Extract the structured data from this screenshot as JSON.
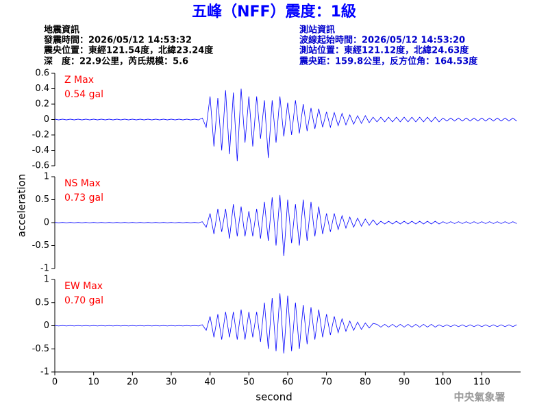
{
  "header": {
    "title": "五峰（NFF）震度：1級",
    "left": [
      "地震資訊",
      "發震時間：2026/05/12 14:53:32",
      "震央位置：東經121.54度，北緯23.24度",
      "深　度：22.9公里，芮氏規模：5.6"
    ],
    "right": [
      "測站資訊",
      "波線起始時間：2026/05/12 14:53:20",
      "測站位置：東經121.12度，北緯24.63度",
      "震央距：159.8公里，反方位角：164.53度"
    ]
  },
  "footer": "中央氣象署",
  "y_label": "acceleration",
  "chart_data": [
    {
      "type": "line",
      "annotations": [
        "Z Max",
        "0.54 gal"
      ],
      "color": "#0000ff",
      "annotation_color": "#ff0000",
      "ylim": [
        -0.6,
        0.6
      ],
      "yticks": [
        -0.6,
        -0.4,
        -0.2,
        0,
        0.2,
        0.4,
        0.6
      ],
      "xlim": [
        0,
        120
      ],
      "x": [
        0,
        1,
        2,
        3,
        4,
        5,
        6,
        7,
        8,
        9,
        10,
        11,
        12,
        13,
        14,
        15,
        16,
        17,
        18,
        19,
        20,
        21,
        22,
        23,
        24,
        25,
        26,
        27,
        28,
        29,
        30,
        31,
        32,
        33,
        34,
        35,
        36,
        37,
        38,
        39,
        40,
        41,
        42,
        43,
        44,
        45,
        46,
        47,
        48,
        49,
        50,
        51,
        52,
        53,
        54,
        55,
        56,
        57,
        58,
        59,
        60,
        61,
        62,
        63,
        64,
        65,
        66,
        67,
        68,
        69,
        70,
        71,
        72,
        73,
        74,
        75,
        76,
        77,
        78,
        79,
        80,
        81,
        82,
        83,
        84,
        85,
        86,
        87,
        88,
        89,
        90,
        91,
        92,
        93,
        94,
        95,
        96,
        97,
        98,
        99,
        100,
        101,
        102,
        103,
        104,
        105,
        106,
        107,
        108,
        109,
        110,
        111,
        112,
        113,
        114,
        115,
        116,
        117,
        118,
        119
      ],
      "values": [
        0.005,
        -0.005,
        0.005,
        -0.005,
        0.005,
        -0.005,
        0.005,
        -0.005,
        0.005,
        -0.005,
        0.005,
        -0.005,
        0.005,
        -0.005,
        0.005,
        -0.005,
        0.005,
        -0.005,
        0.005,
        -0.005,
        0.005,
        -0.005,
        0.005,
        -0.005,
        0.005,
        -0.005,
        0.005,
        -0.005,
        0.005,
        -0.005,
        0.005,
        -0.005,
        0.005,
        -0.005,
        0.005,
        -0.005,
        0.005,
        -0.005,
        0.02,
        -0.1,
        0.3,
        -0.35,
        0.28,
        -0.4,
        0.38,
        -0.45,
        0.35,
        -0.54,
        0.4,
        -0.3,
        0.3,
        -0.35,
        0.3,
        -0.25,
        0.25,
        -0.5,
        0.25,
        -0.3,
        0.3,
        -0.22,
        0.22,
        -0.2,
        0.25,
        -0.18,
        0.2,
        -0.15,
        0.15,
        -0.12,
        0.14,
        -0.1,
        0.1,
        -0.1,
        0.09,
        -0.08,
        0.08,
        -0.07,
        0.06,
        -0.06,
        0.05,
        -0.05,
        0.05,
        -0.04,
        0.03,
        -0.03,
        0.03,
        -0.03,
        0.03,
        -0.03,
        0.03,
        -0.03,
        0.03,
        -0.03,
        0.03,
        -0.03,
        0.03,
        -0.03,
        0.03,
        -0.03,
        0.03,
        -0.03,
        0.02,
        -0.02,
        0.02,
        -0.02,
        0.02,
        -0.02,
        0.02,
        -0.02,
        0.02,
        -0.02,
        0.02,
        -0.02,
        0.02,
        -0.02,
        0.02,
        -0.02,
        0.02,
        -0.02,
        0.02,
        -0.02
      ]
    },
    {
      "type": "line",
      "annotations": [
        "NS Max",
        "0.73 gal"
      ],
      "color": "#0000ff",
      "annotation_color": "#ff0000",
      "ylim": [
        -1,
        1
      ],
      "yticks": [
        -1,
        -0.5,
        0,
        0.5,
        1
      ],
      "xlim": [
        0,
        120
      ],
      "x": [
        0,
        1,
        2,
        3,
        4,
        5,
        6,
        7,
        8,
        9,
        10,
        11,
        12,
        13,
        14,
        15,
        16,
        17,
        18,
        19,
        20,
        21,
        22,
        23,
        24,
        25,
        26,
        27,
        28,
        29,
        30,
        31,
        32,
        33,
        34,
        35,
        36,
        37,
        38,
        39,
        40,
        41,
        42,
        43,
        44,
        45,
        46,
        47,
        48,
        49,
        50,
        51,
        52,
        53,
        54,
        55,
        56,
        57,
        58,
        59,
        60,
        61,
        62,
        63,
        64,
        65,
        66,
        67,
        68,
        69,
        70,
        71,
        72,
        73,
        74,
        75,
        76,
        77,
        78,
        79,
        80,
        81,
        82,
        83,
        84,
        85,
        86,
        87,
        88,
        89,
        90,
        91,
        92,
        93,
        94,
        95,
        96,
        97,
        98,
        99,
        100,
        101,
        102,
        103,
        104,
        105,
        106,
        107,
        108,
        109,
        110,
        111,
        112,
        113,
        114,
        115,
        116,
        117,
        118,
        119
      ],
      "values": [
        0.005,
        -0.005,
        0.005,
        -0.005,
        0.005,
        -0.005,
        0.005,
        -0.005,
        0.005,
        -0.005,
        0.005,
        -0.005,
        0.005,
        -0.005,
        0.005,
        -0.005,
        0.005,
        -0.005,
        0.005,
        -0.005,
        0.005,
        -0.005,
        0.005,
        -0.005,
        0.005,
        -0.005,
        0.005,
        -0.005,
        0.005,
        -0.005,
        0.005,
        -0.005,
        0.005,
        -0.005,
        0.005,
        -0.005,
        0.005,
        -0.005,
        0.02,
        -0.1,
        0.2,
        -0.25,
        0.3,
        -0.2,
        0.3,
        -0.35,
        0.4,
        -0.3,
        0.35,
        -0.3,
        0.25,
        -0.3,
        0.3,
        -0.35,
        0.45,
        -0.4,
        0.55,
        -0.5,
        0.6,
        -0.73,
        0.5,
        -0.45,
        0.4,
        -0.5,
        0.5,
        -0.4,
        0.45,
        -0.3,
        0.35,
        -0.25,
        0.2,
        -0.2,
        0.2,
        -0.15,
        0.15,
        -0.12,
        0.12,
        -0.1,
        0.1,
        -0.08,
        0.08,
        -0.06,
        0.06,
        -0.05,
        0.03,
        -0.03,
        0.03,
        -0.03,
        0.03,
        -0.03,
        0.03,
        -0.03,
        0.03,
        -0.03,
        0.03,
        -0.03,
        0.03,
        -0.03,
        0.03,
        -0.03,
        0.02,
        -0.02,
        0.02,
        -0.02,
        0.02,
        -0.02,
        0.02,
        -0.02,
        0.02,
        -0.02,
        0.02,
        -0.02,
        0.02,
        -0.02,
        0.02,
        -0.02,
        0.02,
        -0.02,
        0.02,
        -0.02
      ]
    },
    {
      "type": "line",
      "annotations": [
        "EW Max",
        "0.70 gal"
      ],
      "color": "#0000ff",
      "annotation_color": "#ff0000",
      "ylim": [
        -1,
        1
      ],
      "yticks": [
        -1,
        -0.5,
        0,
        0.5,
        1
      ],
      "xlim": [
        0,
        120
      ],
      "xticks": [
        0,
        10,
        20,
        30,
        40,
        50,
        60,
        70,
        80,
        90,
        100,
        110
      ],
      "x_label": "second",
      "x": [
        0,
        1,
        2,
        3,
        4,
        5,
        6,
        7,
        8,
        9,
        10,
        11,
        12,
        13,
        14,
        15,
        16,
        17,
        18,
        19,
        20,
        21,
        22,
        23,
        24,
        25,
        26,
        27,
        28,
        29,
        30,
        31,
        32,
        33,
        34,
        35,
        36,
        37,
        38,
        39,
        40,
        41,
        42,
        43,
        44,
        45,
        46,
        47,
        48,
        49,
        50,
        51,
        52,
        53,
        54,
        55,
        56,
        57,
        58,
        59,
        60,
        61,
        62,
        63,
        64,
        65,
        66,
        67,
        68,
        69,
        70,
        71,
        72,
        73,
        74,
        75,
        76,
        77,
        78,
        79,
        80,
        81,
        82,
        83,
        84,
        85,
        86,
        87,
        88,
        89,
        90,
        91,
        92,
        93,
        94,
        95,
        96,
        97,
        98,
        99,
        100,
        101,
        102,
        103,
        104,
        105,
        106,
        107,
        108,
        109,
        110,
        111,
        112,
        113,
        114,
        115,
        116,
        117,
        118,
        119
      ],
      "values": [
        0.005,
        -0.005,
        0.005,
        -0.005,
        0.005,
        -0.005,
        0.005,
        -0.005,
        0.005,
        -0.005,
        0.005,
        -0.005,
        0.005,
        -0.005,
        0.005,
        -0.005,
        0.005,
        -0.005,
        0.005,
        -0.005,
        0.005,
        -0.005,
        0.005,
        -0.005,
        0.005,
        -0.005,
        0.005,
        -0.005,
        0.005,
        -0.005,
        0.005,
        -0.005,
        0.005,
        -0.005,
        0.005,
        -0.005,
        0.005,
        -0.005,
        0.02,
        -0.1,
        0.2,
        -0.25,
        0.25,
        -0.3,
        0.3,
        -0.25,
        0.3,
        -0.3,
        0.35,
        -0.3,
        0.3,
        -0.25,
        0.3,
        -0.35,
        0.5,
        -0.5,
        0.6,
        -0.55,
        0.7,
        -0.6,
        0.65,
        -0.55,
        0.5,
        -0.5,
        0.45,
        -0.4,
        0.4,
        -0.3,
        0.35,
        -0.25,
        0.25,
        -0.2,
        0.2,
        -0.15,
        0.15,
        -0.12,
        0.1,
        -0.1,
        0.08,
        -0.08,
        0.06,
        -0.05,
        0.05,
        0.03,
        -0.03,
        0.03,
        -0.03,
        0.03,
        -0.03,
        0.03,
        -0.03,
        0.03,
        -0.03,
        0.03,
        -0.03,
        0.03,
        -0.03,
        0.03,
        -0.03,
        0.02,
        -0.02,
        0.02,
        -0.02,
        0.02,
        -0.02,
        0.02,
        -0.02,
        0.02,
        -0.02,
        0.02,
        -0.02,
        0.02,
        -0.02,
        0.02,
        -0.02,
        0.02,
        -0.02,
        0.02,
        -0.02,
        0.02
      ]
    }
  ]
}
